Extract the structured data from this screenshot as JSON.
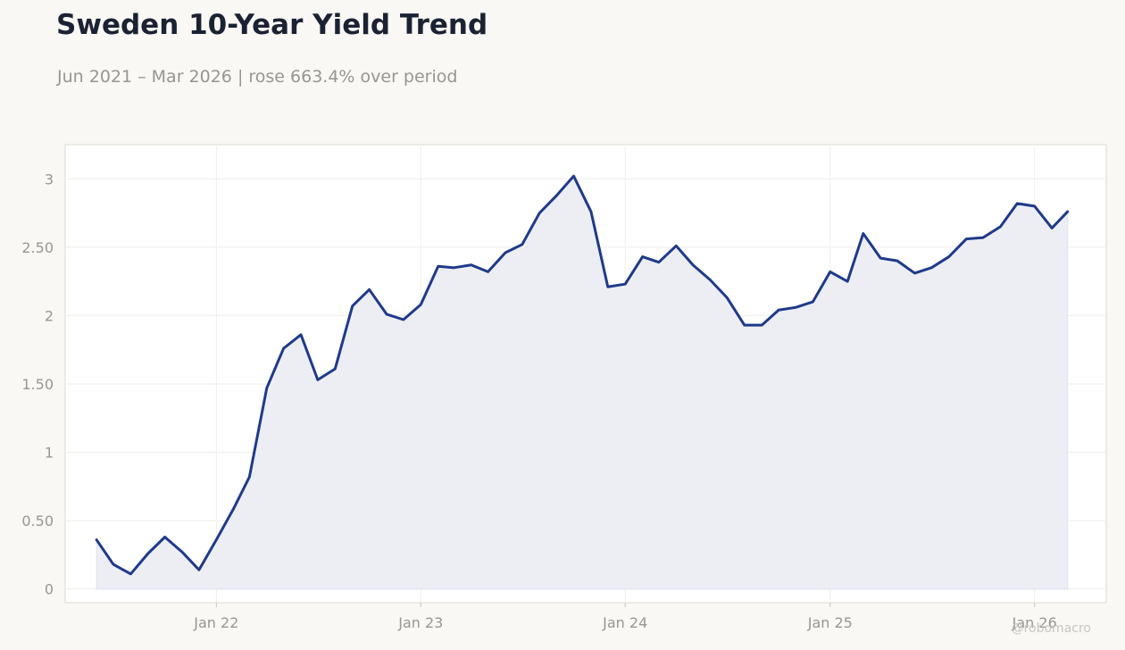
{
  "title": "Sweden 10-Year Yield Trend",
  "subtitle": "Jun 2021 – Mar 2026 | rose 663.4% over period",
  "watermark": "@robomacro",
  "colors": {
    "line": "#1f3a8a",
    "area": "#edeef4",
    "background": "#f9f8f5",
    "plot_background": "#ffffff"
  },
  "chart_data": {
    "type": "area",
    "title": "Sweden 10-Year Yield Trend",
    "subtitle": "Jun 2021 – Mar 2026 | rose 663.4% over period",
    "xlabel": "",
    "ylabel": "",
    "grid": true,
    "legend": "none",
    "xlim": [
      "2021-04-06",
      "2026-05-09"
    ],
    "ylim": [
      -0.1,
      3.25
    ],
    "x_ticks": [
      {
        "label": "Jan 22",
        "date": "2022-01-01"
      },
      {
        "label": "Jan 23",
        "date": "2023-01-01"
      },
      {
        "label": "Jan 24",
        "date": "2024-01-01"
      },
      {
        "label": "Jan 25",
        "date": "2025-01-01"
      },
      {
        "label": "Jan 26",
        "date": "2026-01-01"
      }
    ],
    "y_ticks": [
      {
        "label": "0",
        "value": 0
      },
      {
        "label": "0.50",
        "value": 0.5
      },
      {
        "label": "1",
        "value": 1
      },
      {
        "label": "1.50",
        "value": 1.5
      },
      {
        "label": "2",
        "value": 2
      },
      {
        "label": "2.50",
        "value": 2.5
      },
      {
        "label": "3",
        "value": 3
      }
    ],
    "series": [
      {
        "points": [
          [
            "2021-06-01",
            0.36
          ],
          [
            "2021-07-01",
            0.18
          ],
          [
            "2021-08-01",
            0.11
          ],
          [
            "2021-09-01",
            0.26
          ],
          [
            "2021-10-01",
            0.38
          ],
          [
            "2021-11-01",
            0.27
          ],
          [
            "2021-12-01",
            0.14
          ],
          [
            "2022-01-01",
            0.36
          ],
          [
            "2022-02-01",
            0.59
          ],
          [
            "2022-03-01",
            0.82
          ],
          [
            "2022-04-01",
            1.47
          ],
          [
            "2022-05-01",
            1.76
          ],
          [
            "2022-06-01",
            1.86
          ],
          [
            "2022-07-01",
            1.53
          ],
          [
            "2022-08-01",
            1.61
          ],
          [
            "2022-09-01",
            2.07
          ],
          [
            "2022-10-01",
            2.19
          ],
          [
            "2022-11-01",
            2.01
          ],
          [
            "2022-12-01",
            1.97
          ],
          [
            "2023-01-01",
            2.08
          ],
          [
            "2023-02-01",
            2.36
          ],
          [
            "2023-03-01",
            2.35
          ],
          [
            "2023-04-01",
            2.37
          ],
          [
            "2023-05-01",
            2.32
          ],
          [
            "2023-06-01",
            2.46
          ],
          [
            "2023-07-01",
            2.52
          ],
          [
            "2023-08-01",
            2.75
          ],
          [
            "2023-09-01",
            2.88
          ],
          [
            "2023-10-01",
            3.02
          ],
          [
            "2023-11-01",
            2.76
          ],
          [
            "2023-12-01",
            2.21
          ],
          [
            "2024-01-01",
            2.23
          ],
          [
            "2024-02-01",
            2.43
          ],
          [
            "2024-03-01",
            2.39
          ],
          [
            "2024-04-01",
            2.51
          ],
          [
            "2024-05-01",
            2.37
          ],
          [
            "2024-06-01",
            2.26
          ],
          [
            "2024-07-01",
            2.13
          ],
          [
            "2024-08-01",
            1.93
          ],
          [
            "2024-09-01",
            1.93
          ],
          [
            "2024-10-01",
            2.04
          ],
          [
            "2024-11-01",
            2.06
          ],
          [
            "2024-12-01",
            2.1
          ],
          [
            "2025-01-01",
            2.32
          ],
          [
            "2025-02-01",
            2.25
          ],
          [
            "2025-03-01",
            2.6
          ],
          [
            "2025-04-01",
            2.42
          ],
          [
            "2025-05-01",
            2.4
          ],
          [
            "2025-06-01",
            2.31
          ],
          [
            "2025-07-01",
            2.35
          ],
          [
            "2025-08-01",
            2.43
          ],
          [
            "2025-09-01",
            2.56
          ],
          [
            "2025-10-01",
            2.57
          ],
          [
            "2025-11-01",
            2.65
          ],
          [
            "2025-12-01",
            2.82
          ],
          [
            "2026-01-01",
            2.8
          ],
          [
            "2026-02-01",
            2.64
          ],
          [
            "2026-03-01",
            2.76
          ]
        ]
      }
    ]
  }
}
